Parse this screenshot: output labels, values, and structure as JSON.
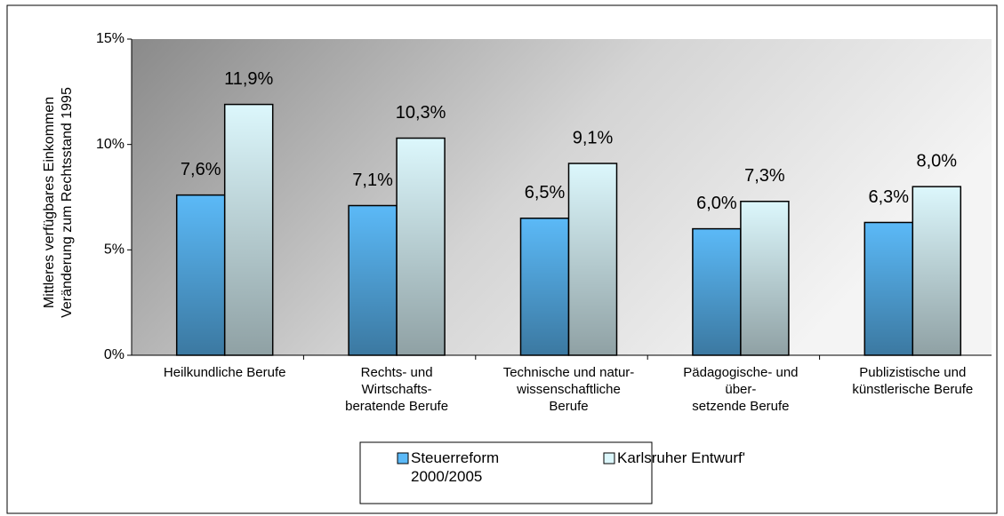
{
  "chart_data": {
    "type": "bar",
    "y_label": "Mittleres verfügbares Einkommen\nVeränderung zum Rechtsstand 1995",
    "categories": [
      "Heilkundliche Berufe",
      "Rechts- und\nWirtschafts-\nberatende Berufe",
      "Technische und natur-\nwissenschaftliche\nBerufe",
      "Pädagogische- und\nüber-\nsetzende Berufe",
      "Publizistische und\nkünstlerische Berufe"
    ],
    "series": [
      {
        "name": "Steuerreform\n2000/2005",
        "color": "#5bb9f7",
        "values": [
          7.6,
          7.1,
          6.5,
          6.0,
          6.3
        ],
        "value_labels": [
          "7,6%",
          "7,1%",
          "6,5%",
          "6,0%",
          "6,3%"
        ]
      },
      {
        "name": "Karlsruher Entwurf'",
        "color": "#dcf7fc",
        "values": [
          11.9,
          10.3,
          9.1,
          7.3,
          8.0
        ],
        "value_labels": [
          "11,9%",
          "10,3%",
          "9,1%",
          "7,3%",
          "8,0%"
        ]
      }
    ],
    "ylim": [
      0,
      15
    ],
    "yticks": [
      {
        "value": 0,
        "label": "0%"
      },
      {
        "value": 5,
        "label": "5%"
      },
      {
        "value": 10,
        "label": "10%"
      },
      {
        "value": 15,
        "label": "15%"
      }
    ],
    "legend": "bottom"
  }
}
